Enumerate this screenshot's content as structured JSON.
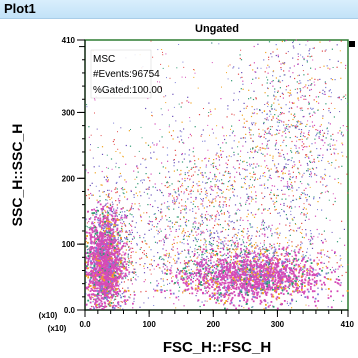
{
  "window": {
    "title": "Plot1"
  },
  "chart_data": {
    "type": "scatter",
    "title": "Ungated",
    "xlabel": "FSC_H::FSC_H",
    "ylabel": "SSC_H::SSC_H",
    "x_scale_label": "(x10)",
    "y_scale_label": "(x10)",
    "xlim": [
      0,
      410
    ],
    "ylim": [
      0,
      410
    ],
    "x_ticks": [
      0,
      100,
      200,
      300,
      410
    ],
    "x_tick_labels": [
      "0.0",
      "100",
      "200",
      "300",
      "410"
    ],
    "y_ticks": [
      0,
      100,
      200,
      300,
      410
    ],
    "y_tick_labels": [
      "0.0",
      "100",
      "200",
      "300",
      "410"
    ],
    "stats": {
      "name": "MSC",
      "events": "#Events:96754",
      "gated": "%Gated:100.00"
    },
    "density_colors": [
      "#d64ab7",
      "#7d7fd6",
      "#2f9a72",
      "#f0a31e",
      "#e24a4a",
      "#6a4fb8"
    ],
    "populations": [
      {
        "cx": 40,
        "cy": 85,
        "sx": 22,
        "sy": 55
      },
      {
        "cx": 250,
        "cy": 70,
        "sx": 70,
        "sy": 30
      },
      {
        "cx": 180,
        "cy": 160,
        "sx": 60,
        "sy": 60
      },
      {
        "cx": 320,
        "cy": 260,
        "sx": 45,
        "sy": 80
      }
    ],
    "dense_cores": [
      {
        "cx": 30,
        "cy": 70,
        "sx": 14,
        "sy": 35
      },
      {
        "cx": 260,
        "cy": 50,
        "sx": 55,
        "sy": 18
      }
    ]
  }
}
